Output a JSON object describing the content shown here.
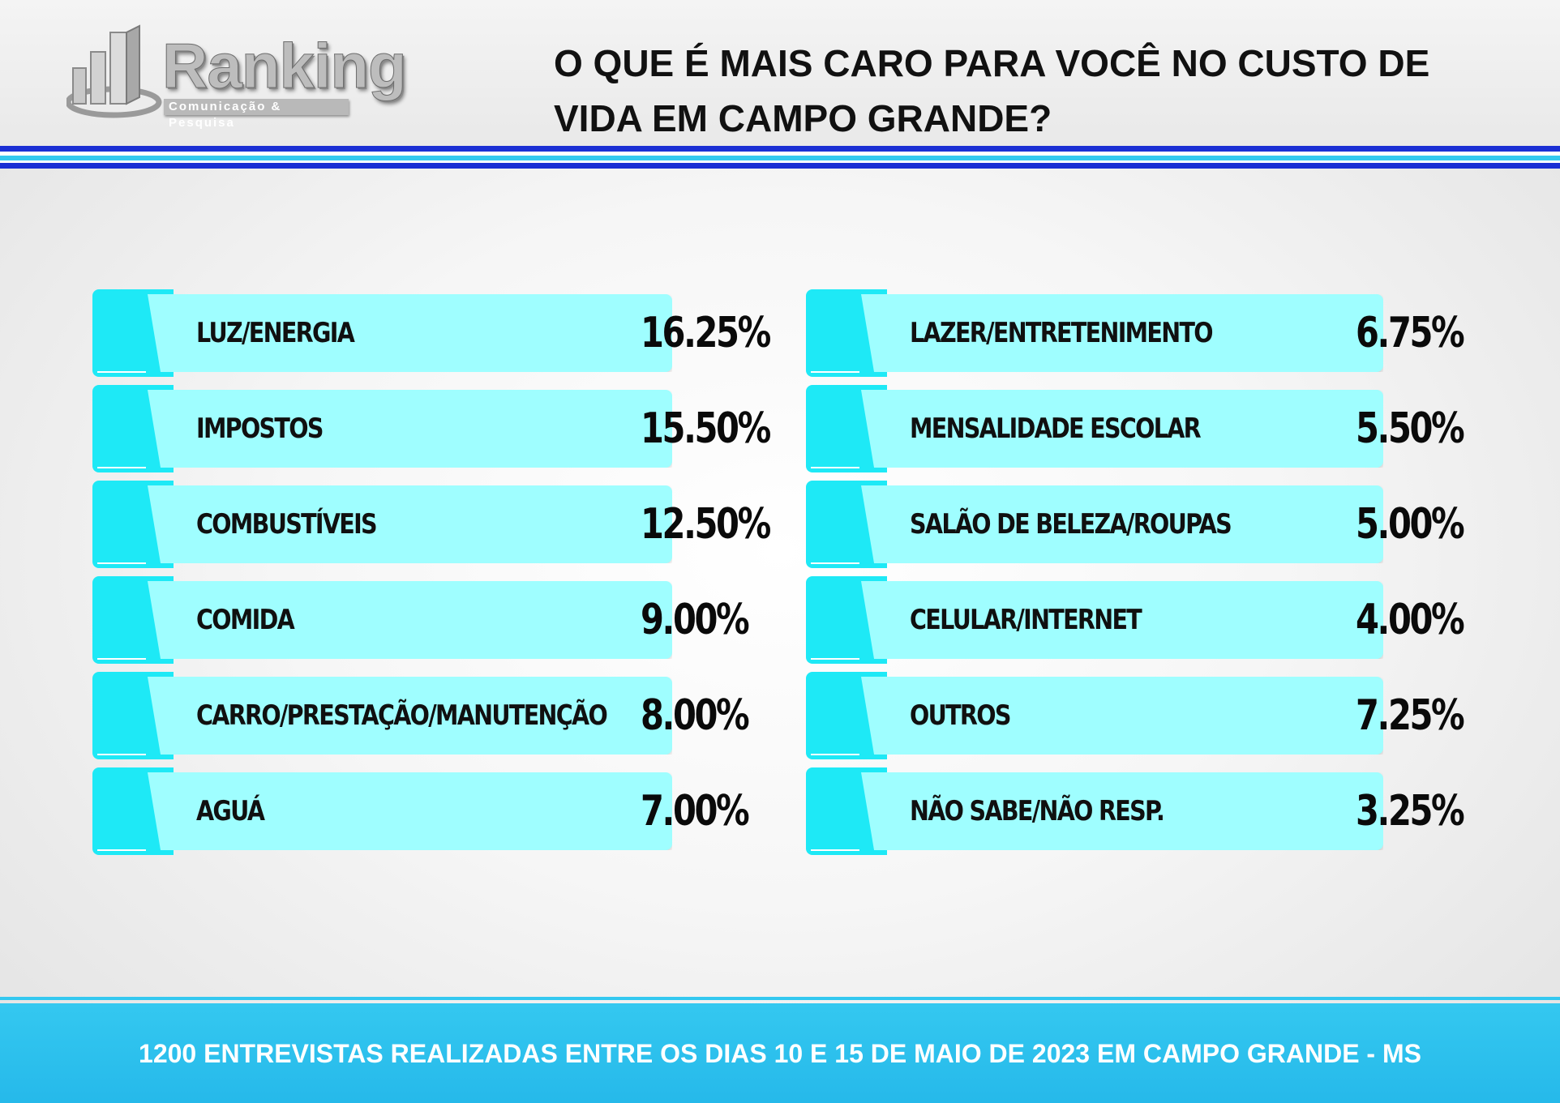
{
  "brand": {
    "name": "Ranking",
    "tagline": "Comunicação & Pesquisa"
  },
  "title": "O QUE É MAIS CARO PARA VOCÊ NO CUSTO DE VIDA EM CAMPO GRANDE?",
  "left_items": [
    {
      "label": "LUZ/ENERGIA",
      "value": "16.25%"
    },
    {
      "label": "IMPOSTOS",
      "value": "15.50%"
    },
    {
      "label": "COMBUSTÍVEIS",
      "value": "12.50%"
    },
    {
      "label": "COMIDA",
      "value": "9.00%"
    },
    {
      "label": "CARRO/PRESTAÇÃO/MANUTENÇÃO",
      "value": "8.00%"
    },
    {
      "label": "AGUÁ",
      "value": "7.00%"
    }
  ],
  "right_items": [
    {
      "label": "LAZER/ENTRETENIMENTO",
      "value": "6.75%"
    },
    {
      "label": "MENSALIDADE ESCOLAR",
      "value": "5.50%"
    },
    {
      "label": "SALÃO DE BELEZA/ROUPAS",
      "value": "5.00%"
    },
    {
      "label": "CELULAR/INTERNET",
      "value": "4.00%"
    },
    {
      "label": "OUTROS",
      "value": "7.25%"
    },
    {
      "label": "NÃO SABE/NÃO RESP.",
      "value": "3.25%"
    }
  ],
  "footer": "1200 ENTREVISTAS REALIZADAS ENTRE OS DIAS 10 E 15 DE MAIO DE 2023 EM CAMPO GRANDE - MS",
  "colors": {
    "tab": "#1ee9f6",
    "bar": "#9ffeff",
    "stripe_dark": "#1a2fd4",
    "stripe_light": "#33c8ef",
    "footer": "#2fc3ee"
  }
}
